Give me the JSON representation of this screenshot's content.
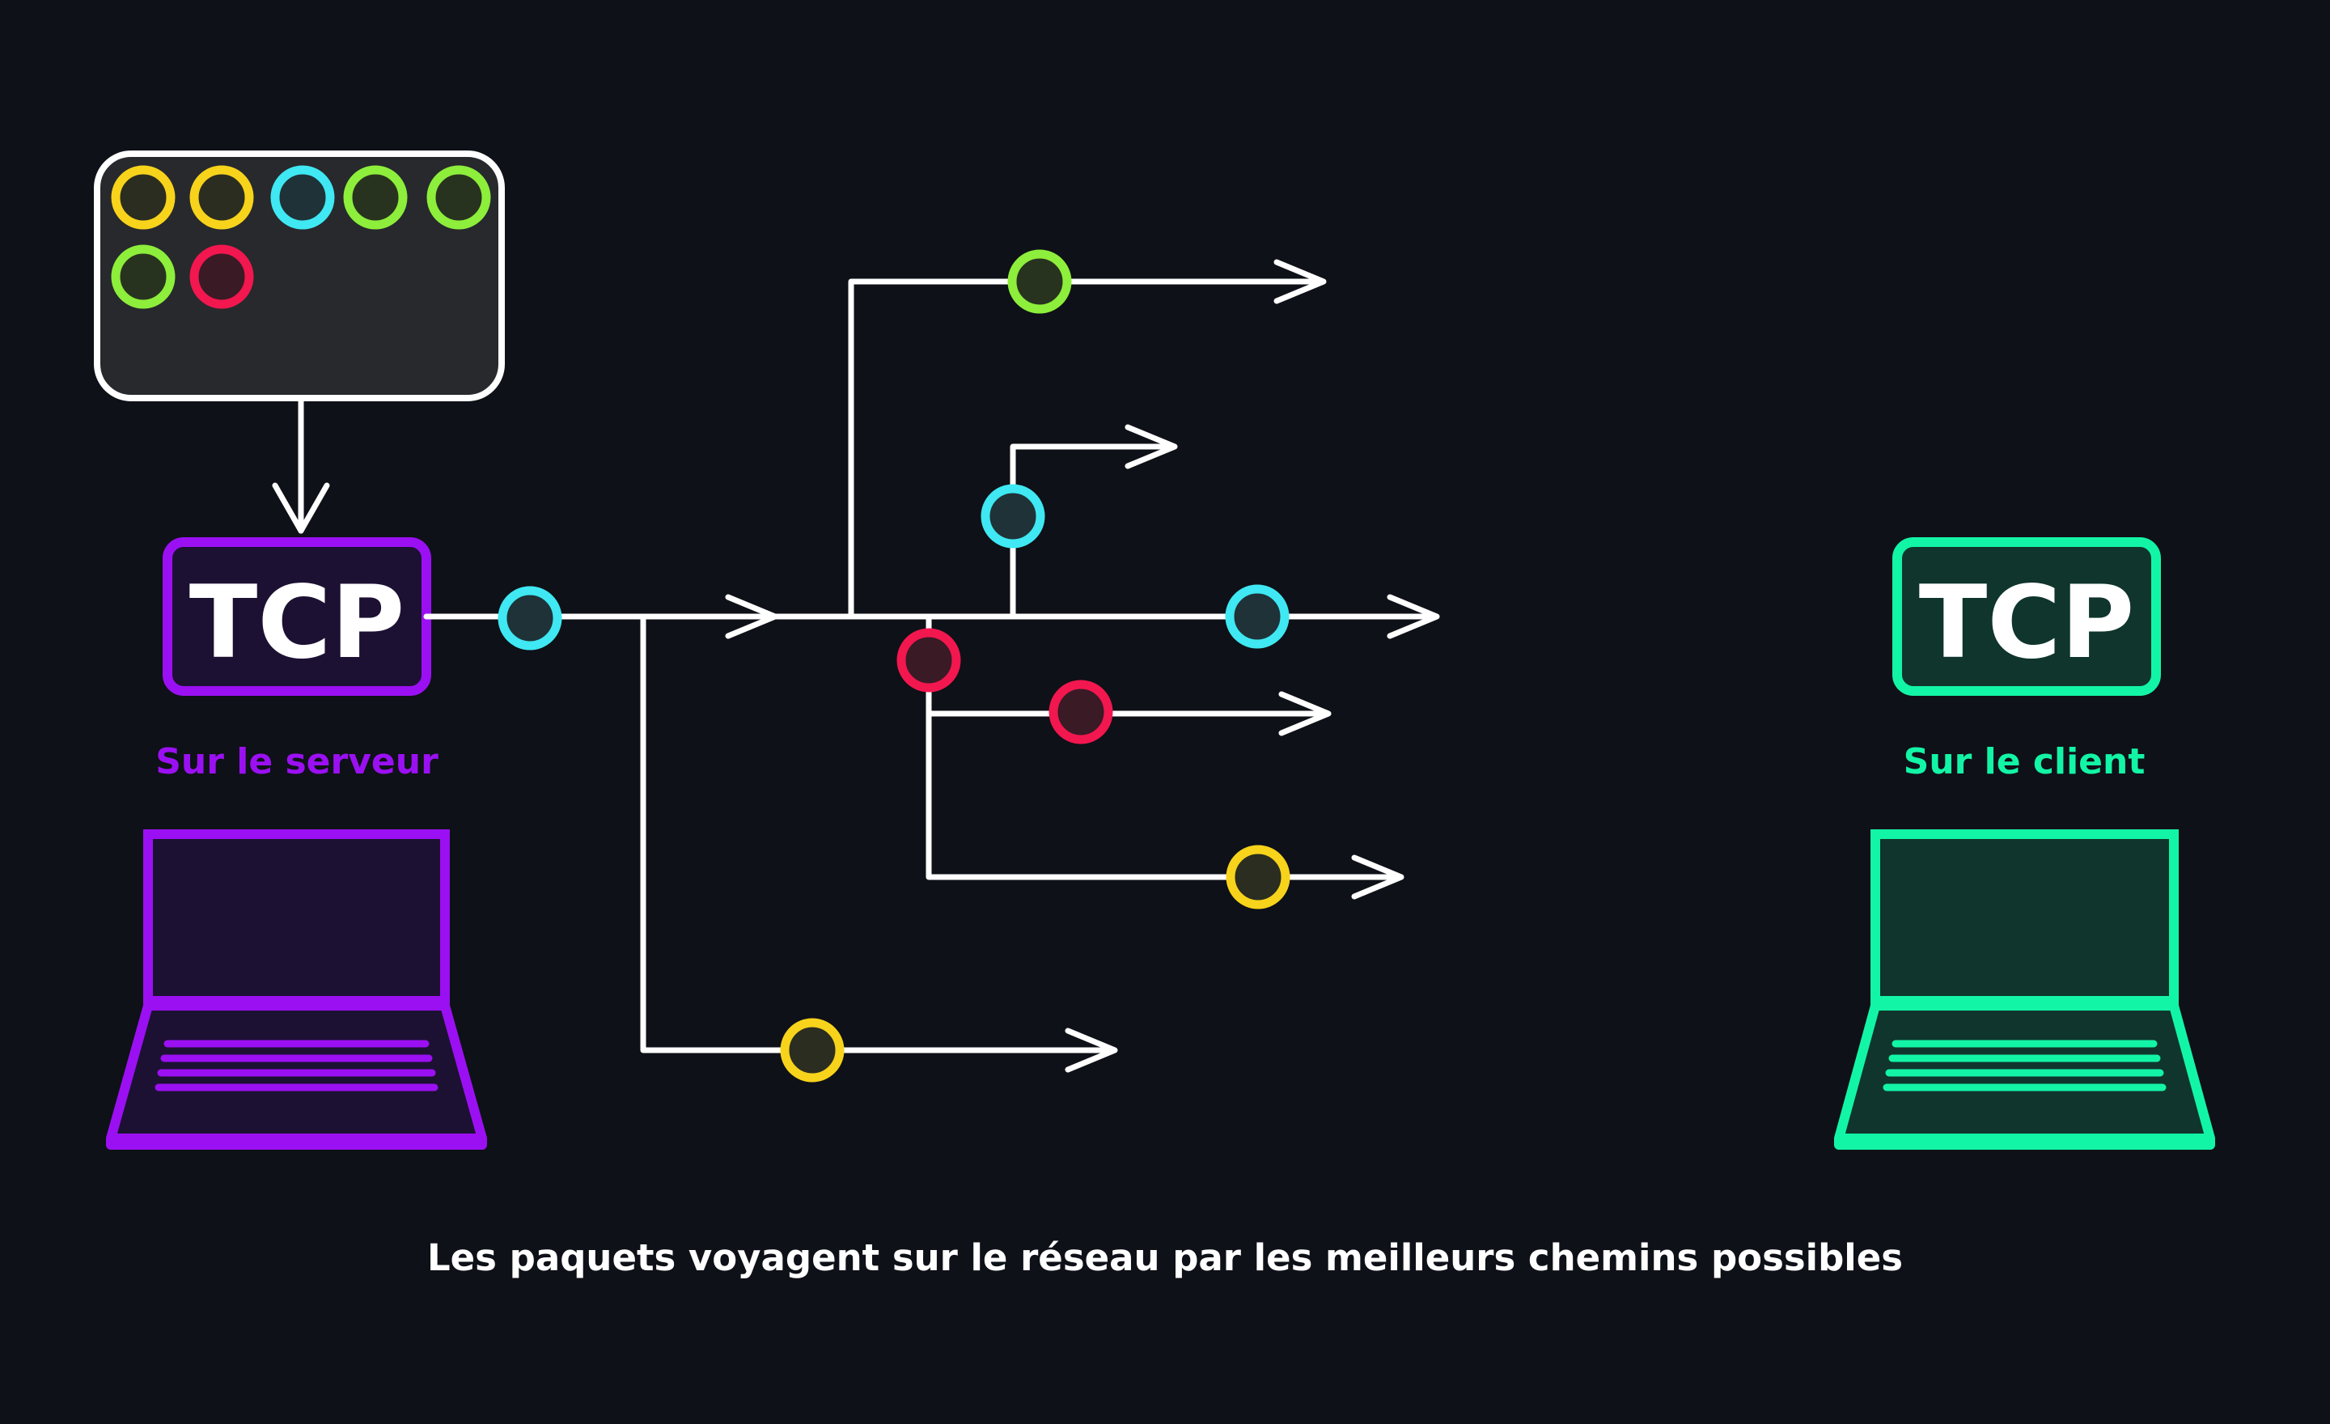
{
  "colors": {
    "background": "#0e1117",
    "line": "#ffffff",
    "server_accent": "#9b10f2",
    "client_accent": "#13f5a6",
    "packet_yellow": "#f7d31b",
    "packet_cyan": "#3fe8f2",
    "packet_green": "#8dee3b",
    "packet_red": "#f2174f"
  },
  "server": {
    "tcp_label": "TCP",
    "caption": "Sur le serveur",
    "icon": "laptop-icon"
  },
  "client": {
    "tcp_label": "TCP",
    "caption": "Sur le client",
    "icon": "laptop-icon"
  },
  "message_box": {
    "packets": [
      "yellow",
      "yellow",
      "cyan",
      "green",
      "green",
      "green",
      "red"
    ]
  },
  "network": {
    "packets_in_transit": [
      "cyan",
      "green",
      "cyan",
      "cyan",
      "red",
      "red",
      "yellow",
      "yellow"
    ]
  },
  "caption": "Les paquets voyagent sur le réseau par les meilleurs chemins possibles"
}
